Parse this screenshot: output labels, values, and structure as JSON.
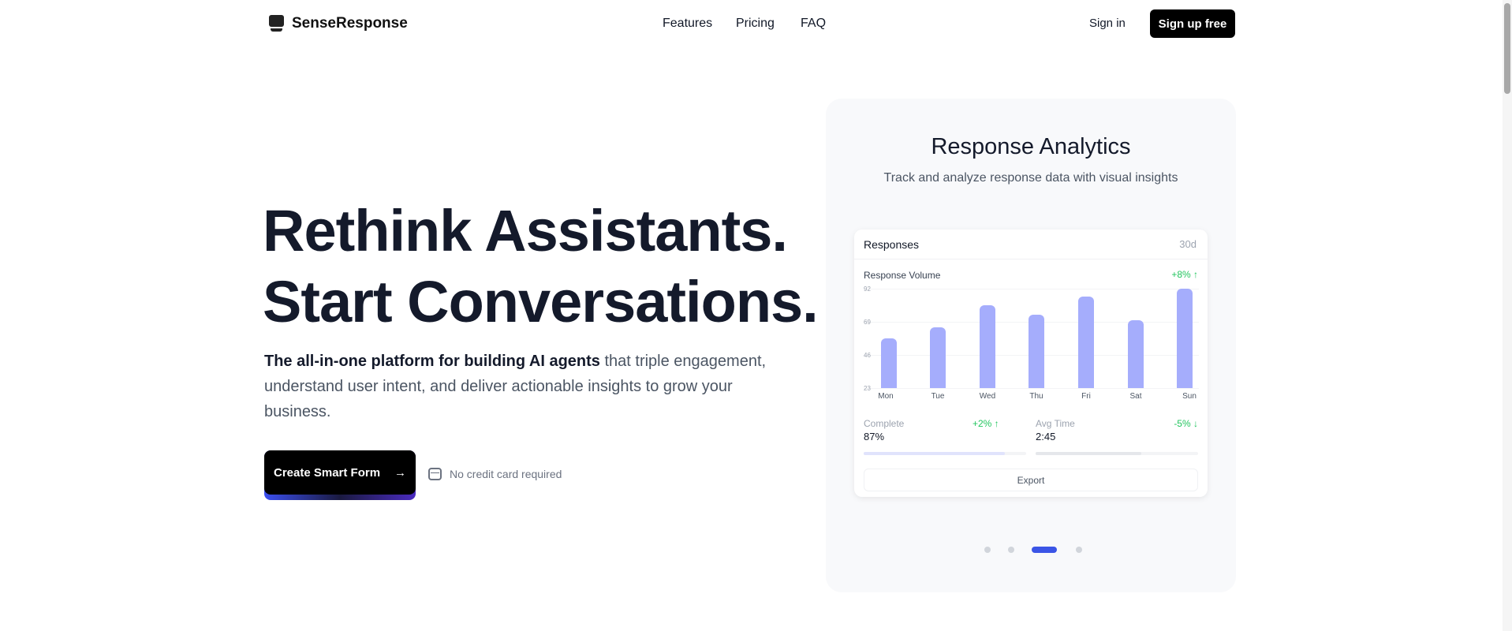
{
  "header": {
    "brand": "SenseResponse",
    "nav": [
      "Features",
      "Pricing",
      "FAQ"
    ],
    "sign_in": "Sign in",
    "sign_up": "Sign up free"
  },
  "hero": {
    "headline_1": "Rethink Assistants.",
    "headline_2": "Start Conversations.",
    "lead_bold": "The all-in-one platform for building AI agents",
    "lead_rest": " that triple engagement, understand user intent, and deliver actionable insights to grow your business.",
    "cta": "Create Smart Form",
    "cta_icon": "arrow-right-icon",
    "note": "No credit card required",
    "note_icon": "credit-card-icon"
  },
  "showcase": {
    "title": "Response Analytics",
    "subtitle": "Track and analyze response data with visual insights",
    "slide_index": 3,
    "slide_count": 4,
    "card": {
      "title": "Responses",
      "period": "30d",
      "chart_title": "Response Volume",
      "chart_change": "+8% ↑",
      "stats": [
        {
          "label": "Complete",
          "value": "87%",
          "change": "+2% ↑",
          "progress": 0.87
        },
        {
          "label": "Avg Time",
          "value": "2:45",
          "change": "-5% ↓",
          "progress": 0.65
        }
      ],
      "export": "Export"
    }
  },
  "colors": {
    "bar": "#a5adfc",
    "accent": "#3b55e6",
    "positive": "#22c55e"
  },
  "chart_data": {
    "type": "bar",
    "categories": [
      "Mon",
      "Tue",
      "Wed",
      "Thu",
      "Fri",
      "Sat",
      "Sun"
    ],
    "values": [
      46,
      56,
      77,
      68,
      85,
      63,
      92
    ],
    "yticks": [
      "92",
      "69",
      "46",
      "23"
    ],
    "ylim": [
      0,
      92
    ],
    "title": "Response Volume",
    "grid": true
  }
}
